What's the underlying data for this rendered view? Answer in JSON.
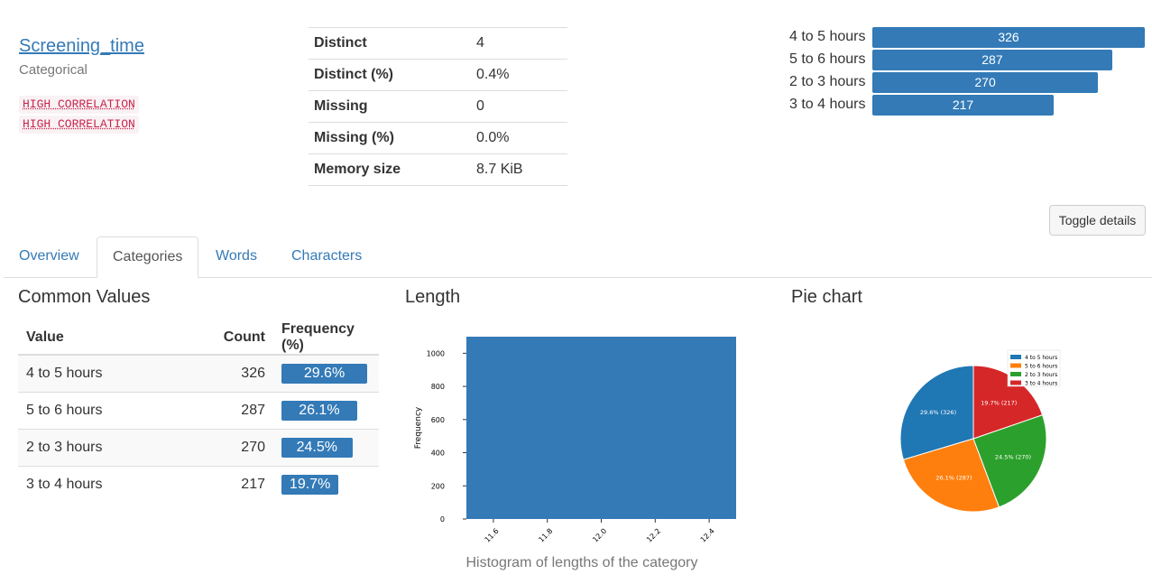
{
  "variable": {
    "name": "Screening_time",
    "type": "Categorical",
    "badges": [
      "HIGH CORRELATION",
      "HIGH CORRELATION"
    ]
  },
  "stats": [
    {
      "label": "Distinct",
      "value": "4"
    },
    {
      "label": "Distinct (%)",
      "value": "0.4%"
    },
    {
      "label": "Missing",
      "value": "0"
    },
    {
      "label": "Missing (%)",
      "value": "0.0%"
    },
    {
      "label": "Memory size",
      "value": "8.7 KiB"
    }
  ],
  "mini_bars": [
    {
      "label": "4 to 5 hours",
      "count": 326
    },
    {
      "label": "5 to 6 hours",
      "count": 287
    },
    {
      "label": "2 to 3 hours",
      "count": 270
    },
    {
      "label": "3 to 4 hours",
      "count": 217
    }
  ],
  "toggle_label": "Toggle details",
  "tabs": [
    {
      "label": "Overview",
      "active": false
    },
    {
      "label": "Categories",
      "active": true
    },
    {
      "label": "Words",
      "active": false
    },
    {
      "label": "Characters",
      "active": false
    }
  ],
  "sections": {
    "common_values": "Common Values",
    "length": "Length",
    "pie": "Pie chart"
  },
  "common_values": {
    "headers": [
      "Value",
      "Count",
      "Frequency (%)"
    ],
    "rows": [
      {
        "value": "4 to 5 hours",
        "count": "326",
        "freq": "29.6%",
        "freq_num": 29.6
      },
      {
        "value": "5 to 6 hours",
        "count": "287",
        "freq": "26.1%",
        "freq_num": 26.1
      },
      {
        "value": "2 to 3 hours",
        "count": "270",
        "freq": "24.5%",
        "freq_num": 24.5
      },
      {
        "value": "3 to 4 hours",
        "count": "217",
        "freq": "19.7%",
        "freq_num": 19.7
      }
    ]
  },
  "histogram_caption": "Histogram of lengths of the category",
  "colors": {
    "accent": "#337ab7",
    "pie": [
      "#1f77b4",
      "#ff7f0e",
      "#2ca02c",
      "#d62728"
    ]
  },
  "chart_data": [
    {
      "type": "bar",
      "title": "",
      "xlabel": "",
      "ylabel": "Frequency",
      "x_ticks": [
        "11.6",
        "11.8",
        "12.0",
        "12.2",
        "12.4"
      ],
      "y_ticks": [
        "0",
        "200",
        "400",
        "600",
        "800",
        "1000"
      ],
      "xlim": [
        11.5,
        12.5
      ],
      "ylim": [
        0,
        1100
      ],
      "bins": [
        {
          "start": 11.5,
          "end": 12.5,
          "value": 1100
        }
      ]
    },
    {
      "type": "pie",
      "title": "",
      "legend_position": "top-right",
      "labels": [
        "4 to 5 hours",
        "5 to 6 hours",
        "2 to 3 hours",
        "3 to 4 hours"
      ],
      "values": [
        326,
        287,
        270,
        217
      ],
      "slice_labels": [
        "29.6%  (326)",
        "26.1%  (287)",
        "24.5%  (270)",
        "19.7%  (217)"
      ]
    }
  ]
}
